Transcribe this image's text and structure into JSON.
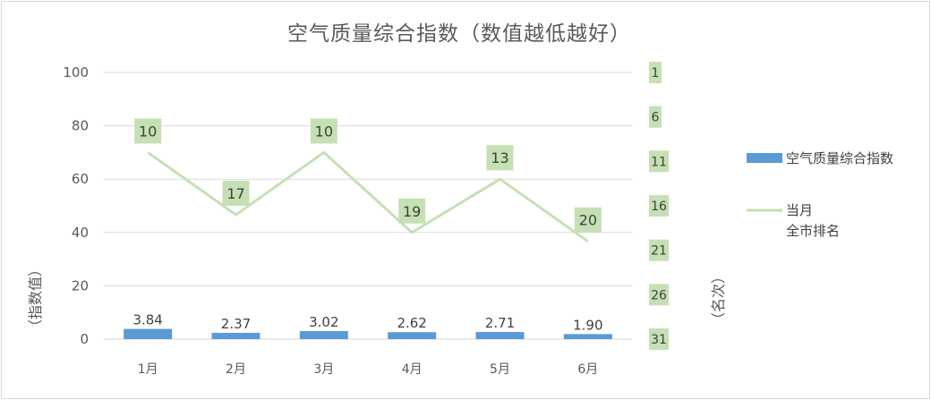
{
  "chart_data": {
    "type": "bar",
    "title": "空气质量综合指数（数值越低越好）",
    "categories": [
      "1月",
      "2月",
      "3月",
      "4月",
      "5月",
      "6月"
    ],
    "xlabel": "",
    "ylabel": "（指数值）",
    "y2label": "（名次）",
    "ylim": [
      0,
      100
    ],
    "yticks": [
      "0",
      "20",
      "40",
      "60",
      "80",
      "100"
    ],
    "y2lim": [
      31,
      1
    ],
    "y2ticks": [
      "1",
      "6",
      "11",
      "16",
      "21",
      "26",
      "31"
    ],
    "grid": true,
    "legend": "right",
    "series": [
      {
        "name": "空气质量综合指数",
        "type": "bar",
        "axis": "left",
        "color": "#5b9bd5",
        "values": [
          3.84,
          2.37,
          3.02,
          2.62,
          2.71,
          1.9
        ],
        "labels": [
          "3.84",
          "2.37",
          "3.02",
          "2.62",
          "2.71",
          "1.90"
        ]
      },
      {
        "name": "当月全市排名",
        "name_lines": [
          "当月",
          "全市排名"
        ],
        "type": "line",
        "axis": "right",
        "color": "#c5e0b4",
        "values": [
          10,
          17,
          10,
          19,
          13,
          20
        ],
        "labels": [
          "10",
          "17",
          "10",
          "19",
          "13",
          "20"
        ]
      }
    ],
    "label_box_color": "#c5e0b4"
  }
}
